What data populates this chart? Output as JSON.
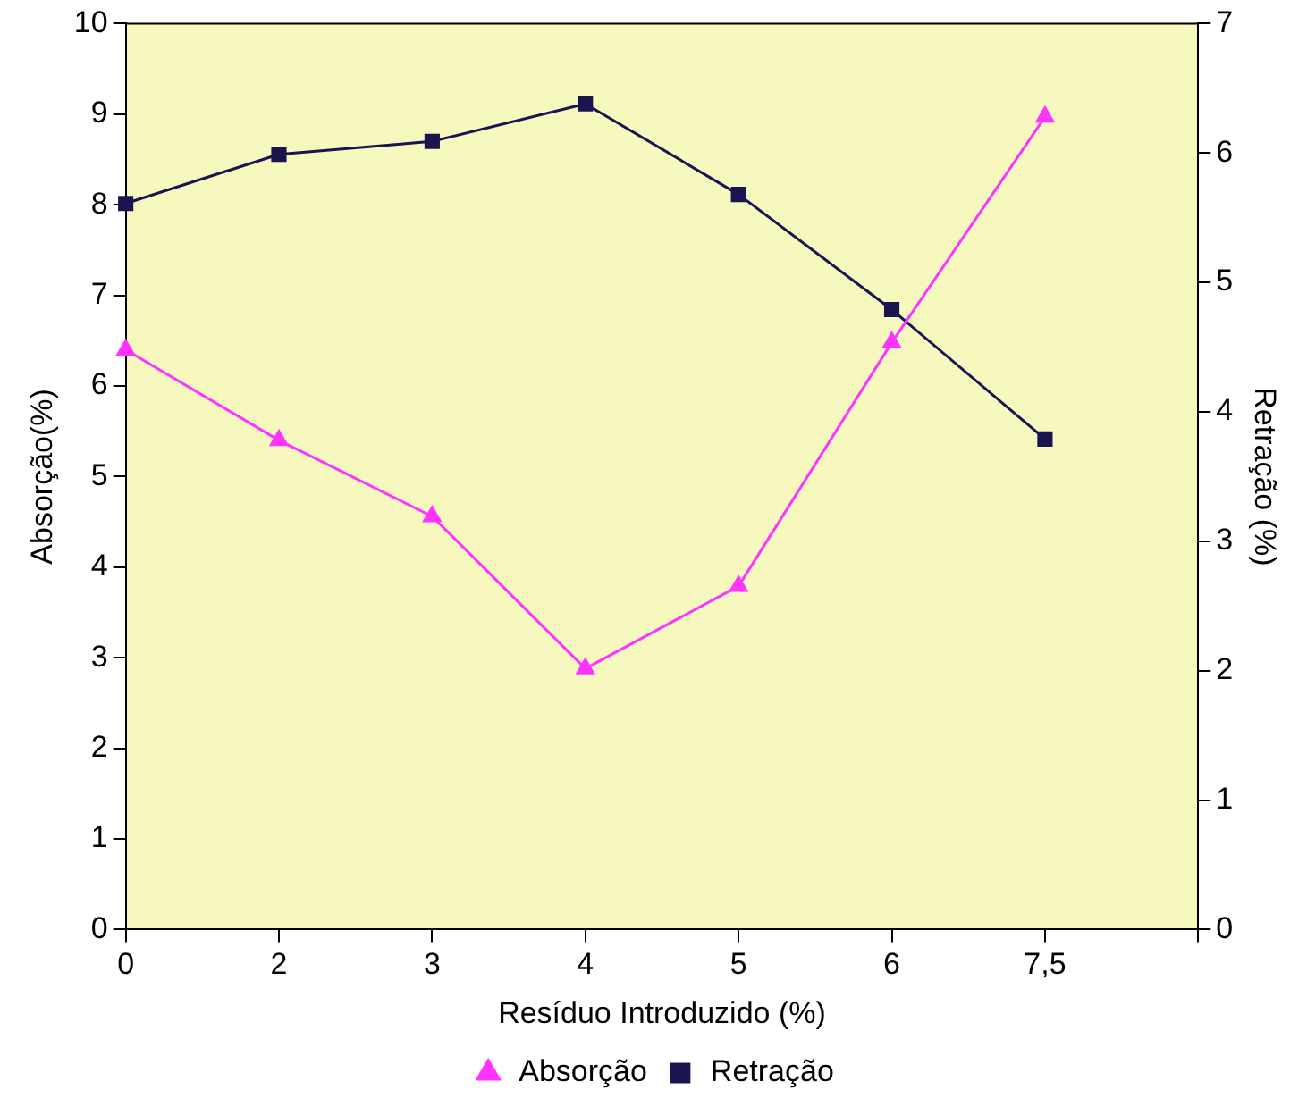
{
  "chart_data": {
    "type": "line",
    "xlabel": "Resíduo Introduzido (%)",
    "ylabel": "Absorção(%)",
    "y2label": "Retração (%)",
    "categories": [
      "0",
      "2",
      "3",
      "4",
      "5",
      "6",
      "7,5",
      null
    ],
    "series": [
      {
        "name": "Absorção",
        "color": "#ff33ff",
        "marker": "triangle",
        "values": [
          6.4,
          5.4,
          4.56,
          2.88,
          3.79,
          6.48,
          8.97,
          null
        ]
      },
      {
        "name": "Retração",
        "color": "#1a1450",
        "marker": "square",
        "axis": "y2",
        "values": [
          5.61,
          5.99,
          6.09,
          6.38,
          5.68,
          4.79,
          3.79,
          null
        ]
      }
    ],
    "ylim": [
      0,
      10
    ],
    "yticks": [
      0,
      1,
      2,
      3,
      4,
      5,
      6,
      7,
      8,
      9,
      10
    ],
    "y2lim": [
      0,
      7
    ],
    "y2ticks": [
      0,
      1,
      2,
      3,
      4,
      5,
      6,
      7
    ],
    "grid": false,
    "legend": "bottom",
    "line_style": "solid"
  }
}
